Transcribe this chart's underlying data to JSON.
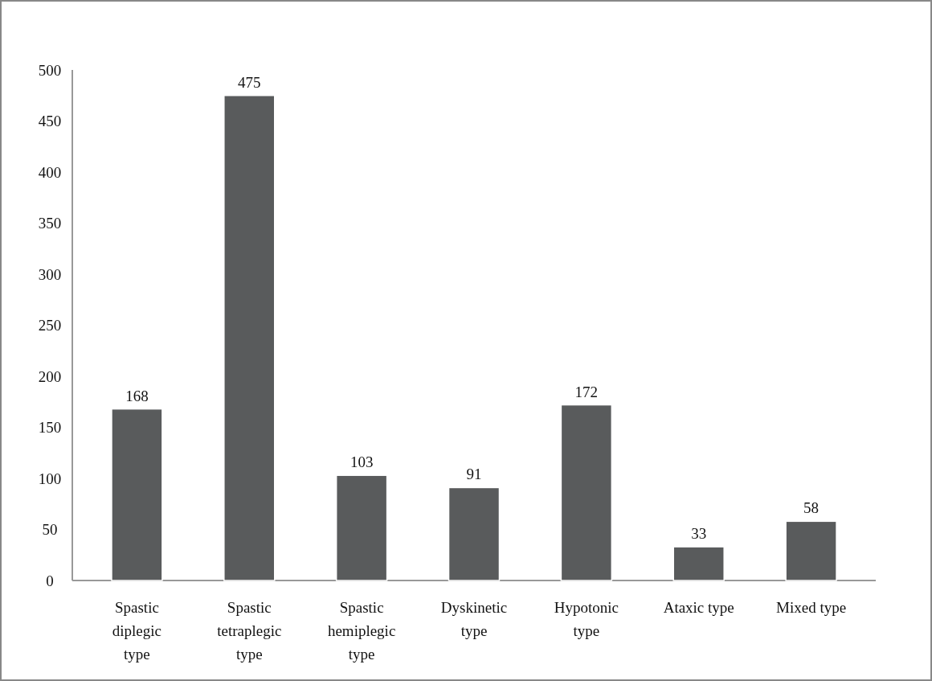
{
  "chart_data": {
    "type": "bar",
    "categories": [
      "Spastic diplegic type",
      "Spastic tetraplegic type",
      "Spastic hemiplegic type",
      "Dyskinetic type",
      "Hypotonic type",
      "Ataxic type",
      "Mixed type"
    ],
    "values": [
      168,
      475,
      103,
      91,
      172,
      33,
      58
    ],
    "color": "#595b5c",
    "ylim": [
      0,
      500
    ],
    "yticks": [
      0,
      50,
      100,
      150,
      200,
      250,
      300,
      350,
      400,
      450,
      500
    ],
    "data_labels": true
  }
}
